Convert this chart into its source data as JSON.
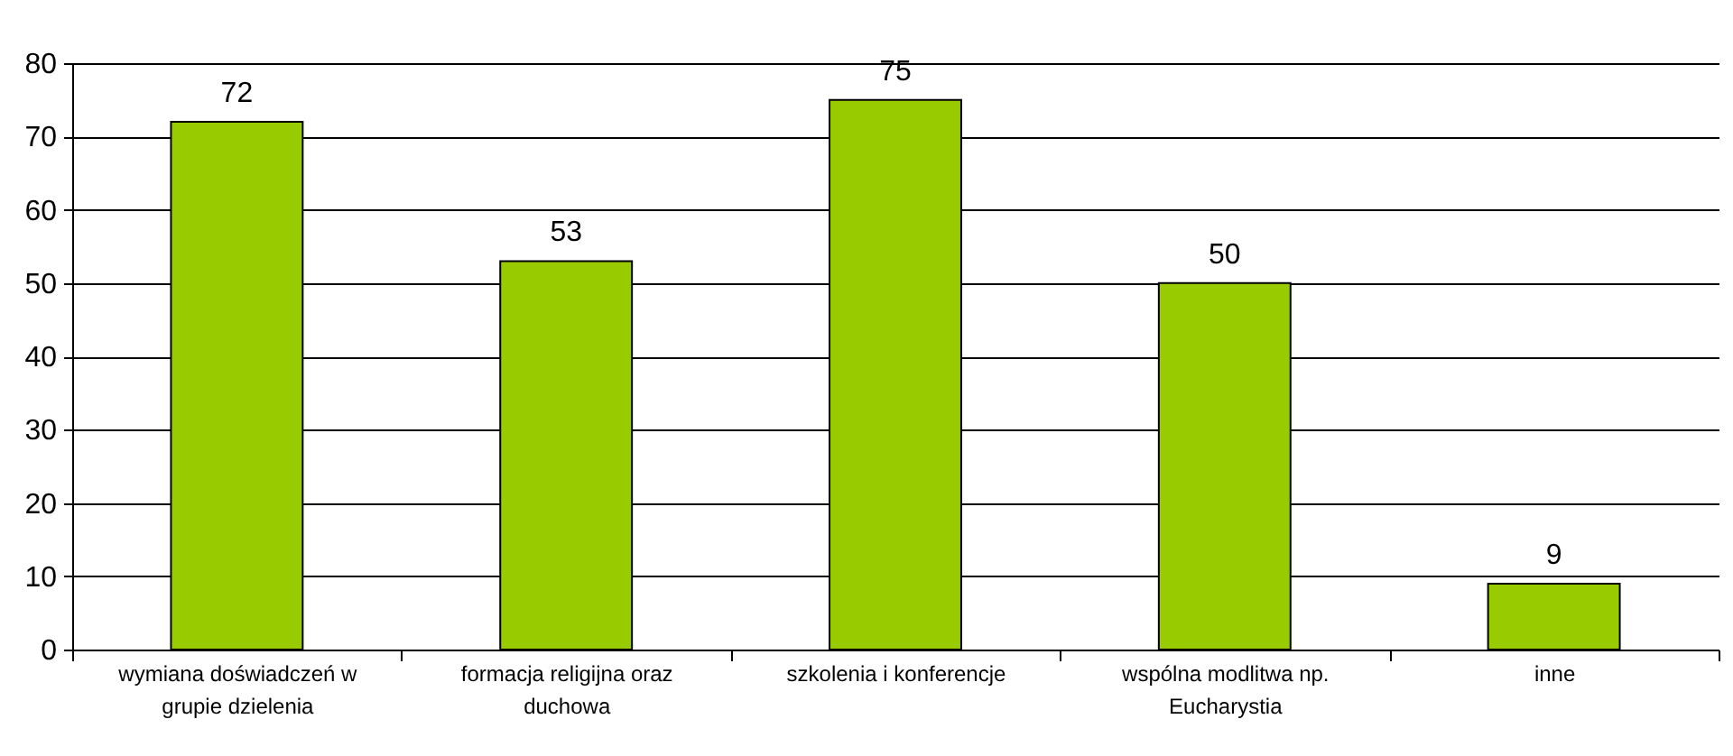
{
  "chart_data": {
    "type": "bar",
    "categories": [
      "wymiana doświadczeń w grupie dzielenia",
      "formacja religijna oraz duchowa",
      "szkolenia i konferencje",
      "wspólna modlitwa np. Eucharystia",
      "inne"
    ],
    "values": [
      72,
      53,
      75,
      50,
      9
    ],
    "color": "#99cc00",
    "ylim": [
      0,
      80
    ],
    "yticks": [
      0,
      10,
      20,
      30,
      40,
      50,
      60,
      70,
      80
    ],
    "grid": "y",
    "data_labels": true
  }
}
